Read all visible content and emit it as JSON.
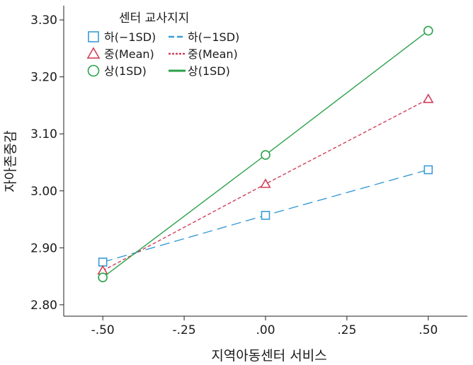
{
  "chart_data": {
    "type": "line",
    "x": [
      -0.5,
      0.0,
      0.5
    ],
    "x_ticks": [
      -0.5,
      -0.25,
      0.0,
      0.25,
      0.5
    ],
    "x_tick_labels": [
      "-.50",
      "-.25",
      ".00",
      ".25",
      ".50"
    ],
    "y_ticks": [
      2.8,
      2.9,
      3.0,
      3.1,
      3.2,
      3.3
    ],
    "y_tick_labels": [
      "2.80",
      "2.90",
      "3.00",
      "3.10",
      "3.20",
      "3.30"
    ],
    "xlim": [
      -0.62,
      0.62
    ],
    "ylim": [
      2.78,
      3.325
    ],
    "xlabel": "지역아동센터 서비스",
    "ylabel": "자아존중감",
    "legend_title": "센터 교사지지",
    "legend_position": "top-left",
    "grid": false,
    "series": [
      {
        "name": "하(−1SD)",
        "marker_label": "하(−1SD)",
        "line_label": "하(−1SD)",
        "marker": "square",
        "dash": "dashed",
        "color": "#3a9bd5",
        "values": [
          2.875,
          2.957,
          3.037
        ]
      },
      {
        "name": "중(Mean)",
        "marker_label": "중(Mean)",
        "line_label": "중(Mean)",
        "marker": "triangle",
        "dash": "dotted",
        "color": "#d0405a",
        "values": [
          2.86,
          3.012,
          3.161
        ]
      },
      {
        "name": "상(1SD)",
        "marker_label": "상(1SD)",
        "line_label": "상(1SD)",
        "marker": "circle",
        "dash": "solid",
        "color": "#2aa24a",
        "values": [
          2.848,
          3.063,
          3.281
        ]
      }
    ]
  }
}
